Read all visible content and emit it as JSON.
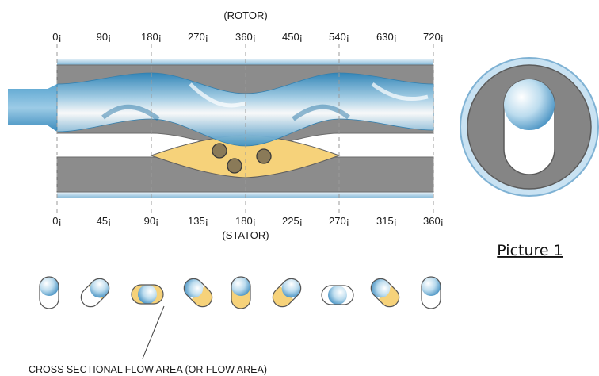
{
  "diagram": {
    "rotor_label": "(ROTOR)",
    "stator_label": "(STATOR)",
    "rotor_ticks": [
      "0¡",
      "90¡",
      "180¡",
      "270¡",
      "360¡",
      "450¡",
      "540¡",
      "630¡",
      "720¡"
    ],
    "stator_ticks": [
      "0¡",
      "45¡",
      "90¡",
      "135¡",
      "180¡",
      "225¡",
      "270¡",
      "315¡",
      "360¡"
    ],
    "picture_label": "Picture 1",
    "flow_area_caption": "CROSS SECTIONAL FLOW AREA (OR FLOW AREA)"
  },
  "colors": {
    "stator": "#8c8c8c",
    "stator_dark": "#6e6e6e",
    "rotor_blue": "#3d8fc0",
    "rotor_light": "#d9ecf6",
    "cavity": "#f6d27a",
    "particle": "#8a7a58"
  }
}
